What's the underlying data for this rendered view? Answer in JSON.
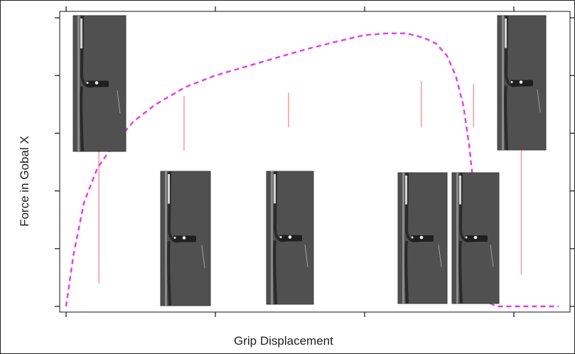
{
  "chart_data": {
    "type": "line",
    "title": "",
    "xlabel": "Grip Displacement",
    "ylabel": "Force in Gobal X",
    "xlim": [
      0,
      3.3
    ],
    "ylim": [
      0,
      5
    ],
    "x_ticks": [
      0,
      1,
      2,
      3
    ],
    "y_ticks": [
      0,
      1,
      2,
      3,
      4,
      5
    ],
    "tick_labels_visible": false,
    "grid": false,
    "series": [
      {
        "line_style": "dashed",
        "color": "#e83be6",
        "x": [
          0,
          0.05,
          0.12,
          0.21,
          0.32,
          0.45,
          0.6,
          0.8,
          1.0,
          1.2,
          1.4,
          1.6,
          1.8,
          2.0,
          2.15,
          2.28,
          2.4,
          2.48,
          2.55,
          2.61,
          2.66,
          2.7,
          2.74,
          2.77,
          2.8,
          2.83,
          2.88,
          3.3
        ],
        "y": [
          0,
          0.9,
          1.8,
          2.4,
          2.8,
          3.2,
          3.5,
          3.8,
          4.0,
          4.15,
          4.3,
          4.45,
          4.58,
          4.7,
          4.73,
          4.73,
          4.65,
          4.55,
          4.35,
          4.0,
          3.5,
          2.8,
          1.85,
          1.05,
          0.42,
          0.07,
          0.0,
          0.0
        ]
      }
    ],
    "marker_lines": [
      {
        "x": 0.22,
        "y_low": 0.4,
        "y_high": 2.7
      },
      {
        "x": 0.79,
        "y_low": 2.7,
        "y_high": 3.65
      },
      {
        "x": 1.49,
        "y_low": 3.1,
        "y_high": 3.7
      },
      {
        "x": 2.38,
        "y_low": 3.1,
        "y_high": 3.9
      },
      {
        "x": 2.73,
        "y_low": 3.1,
        "y_high": 3.85
      },
      {
        "x": 3.05,
        "y_low": 0.55,
        "y_high": 2.7
      }
    ],
    "snapshot_images": [
      {
        "name": "snapshot-image-1",
        "description": "grayscale specimen frame"
      },
      {
        "name": "snapshot-image-2",
        "description": "grayscale specimen frame"
      },
      {
        "name": "snapshot-image-3",
        "description": "grayscale specimen frame"
      },
      {
        "name": "snapshot-image-4",
        "description": "grayscale specimen frame"
      },
      {
        "name": "snapshot-image-5",
        "description": "grayscale specimen frame"
      },
      {
        "name": "snapshot-image-6",
        "description": "grayscale specimen frame"
      }
    ],
    "colors": {
      "curve": "#e83be6",
      "marker_line": "#f3a0a6",
      "axis": "#111111",
      "image_dark": "#505050",
      "image_mid": "#6a6a6a",
      "image_light": "#f2f2f2"
    }
  }
}
